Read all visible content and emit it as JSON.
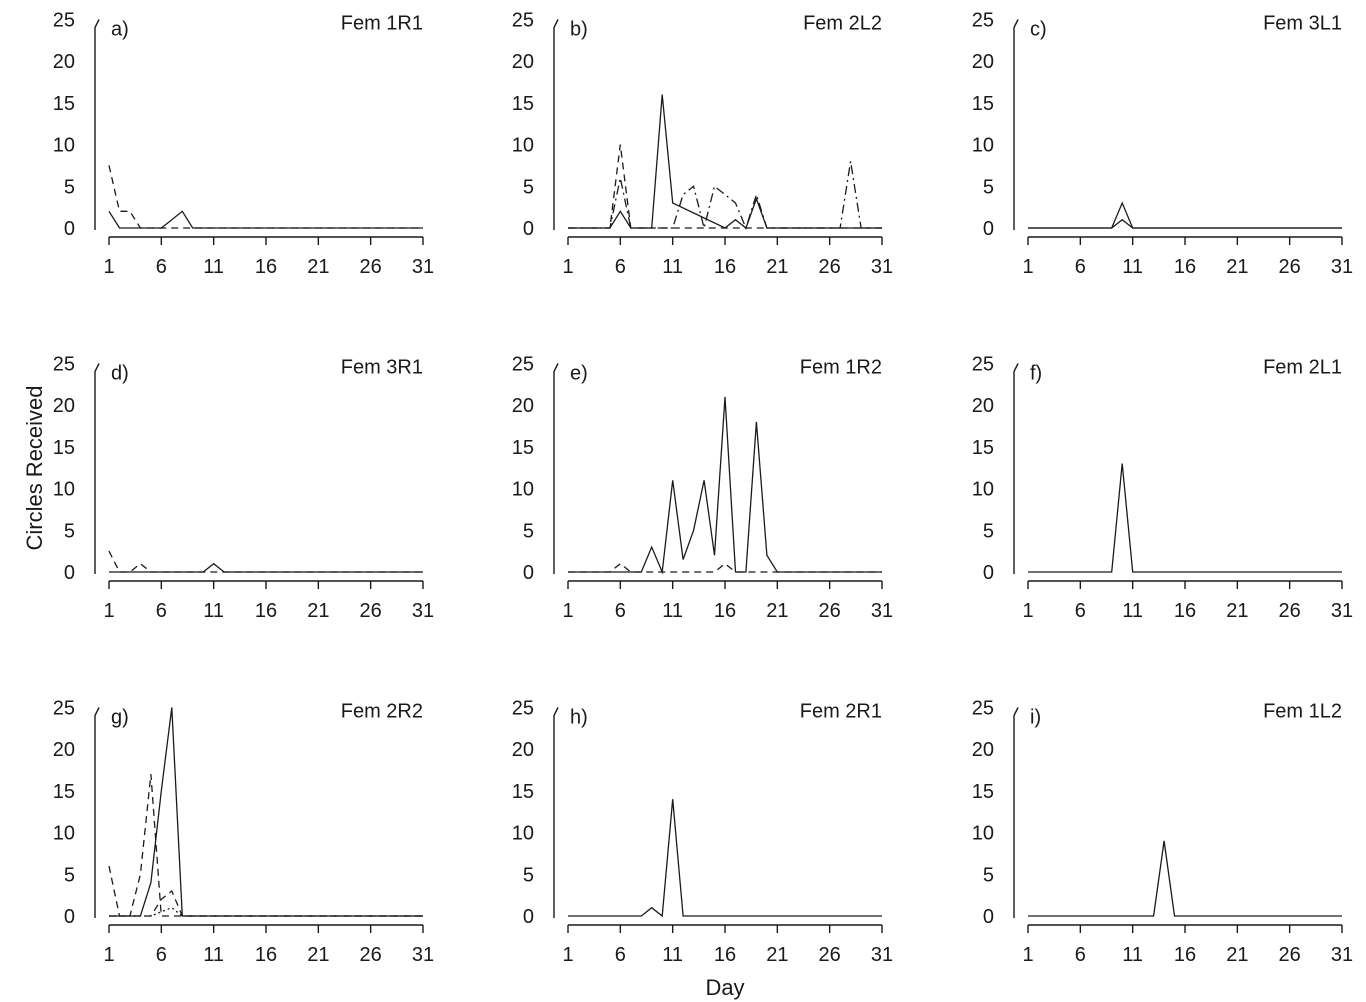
{
  "figure": {
    "ylabel": "Circles Received",
    "xlabel": "Day"
  },
  "chart_data": [
    {
      "type": "line",
      "letter": "a)",
      "title": "Fem 1R1",
      "xticks": [
        1,
        6,
        11,
        16,
        21,
        26,
        31
      ],
      "yticks": [
        0,
        5,
        10,
        15,
        20,
        25
      ],
      "xlim": [
        1,
        31
      ],
      "ylim": [
        0,
        25
      ],
      "series": [
        {
          "style": "solid",
          "x": [
            1,
            2,
            3,
            4,
            5,
            6,
            7,
            8,
            9,
            10,
            31
          ],
          "y": [
            2,
            0,
            0,
            0,
            0,
            0,
            1,
            2,
            0,
            0,
            0
          ]
        },
        {
          "style": "dashed",
          "x": [
            1,
            2,
            3,
            4,
            5,
            31
          ],
          "y": [
            7.5,
            2,
            2,
            0,
            0,
            0
          ]
        }
      ]
    },
    {
      "type": "line",
      "letter": "b)",
      "title": "Fem 2L2",
      "xticks": [
        1,
        6,
        11,
        16,
        21,
        26,
        31
      ],
      "yticks": [
        0,
        5,
        10,
        15,
        20,
        25
      ],
      "xlim": [
        1,
        31
      ],
      "ylim": [
        0,
        25
      ],
      "series": [
        {
          "style": "solid",
          "x": [
            1,
            5,
            6,
            7,
            9,
            10,
            11,
            16,
            17,
            18,
            19,
            20,
            31
          ],
          "y": [
            0,
            0,
            2,
            0,
            0,
            16,
            3,
            0,
            1,
            0,
            3.5,
            0,
            0
          ]
        },
        {
          "style": "dashed",
          "x": [
            1,
            5,
            6,
            7,
            31
          ],
          "y": [
            0,
            0,
            10,
            0,
            0
          ]
        },
        {
          "style": "dash-dot",
          "x": [
            1,
            5,
            6,
            7,
            11,
            12,
            13,
            14,
            15,
            16,
            17,
            18,
            19,
            20,
            27,
            28,
            29,
            31
          ],
          "y": [
            0,
            0,
            6,
            0,
            0,
            4,
            5,
            0,
            5,
            4,
            3,
            0,
            4,
            0,
            0,
            8,
            0,
            0
          ]
        }
      ]
    },
    {
      "type": "line",
      "letter": "c)",
      "title": "Fem 3L1",
      "xticks": [
        1,
        6,
        11,
        16,
        21,
        26,
        31
      ],
      "yticks": [
        0,
        5,
        10,
        15,
        20,
        25
      ],
      "xlim": [
        1,
        31
      ],
      "ylim": [
        0,
        25
      ],
      "series": [
        {
          "style": "solid",
          "x": [
            1,
            9,
            10,
            11,
            31
          ],
          "y": [
            0,
            0,
            3,
            0,
            0
          ]
        },
        {
          "style": "solid",
          "x": [
            1,
            9,
            10,
            11,
            31
          ],
          "y": [
            0,
            0,
            1,
            0,
            0
          ]
        }
      ]
    },
    {
      "type": "line",
      "letter": "d)",
      "title": "Fem 3R1",
      "xticks": [
        1,
        6,
        11,
        16,
        21,
        26,
        31
      ],
      "yticks": [
        0,
        5,
        10,
        15,
        20,
        25
      ],
      "xlim": [
        1,
        31
      ],
      "ylim": [
        0,
        25
      ],
      "series": [
        {
          "style": "solid",
          "x": [
            1,
            10,
            11,
            12,
            31
          ],
          "y": [
            0,
            0,
            1,
            0,
            0
          ]
        },
        {
          "style": "dashed",
          "x": [
            1,
            2,
            3,
            4,
            5,
            31
          ],
          "y": [
            2.5,
            0,
            0,
            1,
            0,
            0
          ]
        }
      ]
    },
    {
      "type": "line",
      "letter": "e)",
      "title": "Fem 1R2",
      "xticks": [
        1,
        6,
        11,
        16,
        21,
        26,
        31
      ],
      "yticks": [
        0,
        5,
        10,
        15,
        20,
        25
      ],
      "xlim": [
        1,
        31
      ],
      "ylim": [
        0,
        25
      ],
      "series": [
        {
          "style": "solid",
          "x": [
            1,
            8,
            9,
            10,
            11,
            12,
            13,
            14,
            15,
            16,
            17,
            18,
            19,
            20,
            21,
            31
          ],
          "y": [
            0,
            0,
            3,
            0,
            11,
            1.5,
            5,
            11,
            2,
            21,
            0,
            0,
            18,
            2,
            0,
            0
          ]
        },
        {
          "style": "dashed",
          "x": [
            1,
            5,
            6,
            7,
            15,
            16,
            17,
            31
          ],
          "y": [
            0,
            0,
            1,
            0,
            0,
            1,
            0,
            0
          ]
        }
      ]
    },
    {
      "type": "line",
      "letter": "f)",
      "title": "Fem 2L1",
      "xticks": [
        1,
        6,
        11,
        16,
        21,
        26,
        31
      ],
      "yticks": [
        0,
        5,
        10,
        15,
        20,
        25
      ],
      "xlim": [
        1,
        31
      ],
      "ylim": [
        0,
        25
      ],
      "series": [
        {
          "style": "solid",
          "x": [
            1,
            9,
            10,
            11,
            31
          ],
          "y": [
            0,
            0,
            13,
            0,
            0
          ]
        }
      ]
    },
    {
      "type": "line",
      "letter": "g)",
      "title": "Fem 2R2",
      "xticks": [
        1,
        6,
        11,
        16,
        21,
        26,
        31
      ],
      "yticks": [
        0,
        5,
        10,
        15,
        20,
        25
      ],
      "xlim": [
        1,
        31
      ],
      "ylim": [
        0,
        25
      ],
      "series": [
        {
          "style": "solid",
          "x": [
            1,
            4,
            5,
            6,
            7,
            8,
            31
          ],
          "y": [
            0,
            0,
            4,
            15,
            25,
            0,
            0
          ]
        },
        {
          "style": "dashed",
          "x": [
            1,
            2,
            3,
            4,
            5,
            6,
            7,
            31
          ],
          "y": [
            6,
            0,
            0,
            5,
            17,
            0,
            0,
            0
          ]
        },
        {
          "style": "dashed",
          "x": [
            1,
            5,
            6,
            7,
            8,
            31
          ],
          "y": [
            0,
            0,
            2,
            3,
            0,
            0
          ]
        },
        {
          "style": "dotted",
          "x": [
            1,
            5,
            6,
            7,
            8,
            31
          ],
          "y": [
            0,
            0,
            0.5,
            1,
            0,
            0
          ]
        }
      ]
    },
    {
      "type": "line",
      "letter": "h)",
      "title": "Fem 2R1",
      "xticks": [
        1,
        6,
        11,
        16,
        21,
        26,
        31
      ],
      "yticks": [
        0,
        5,
        10,
        15,
        20,
        25
      ],
      "xlim": [
        1,
        31
      ],
      "ylim": [
        0,
        25
      ],
      "series": [
        {
          "style": "solid",
          "x": [
            1,
            8,
            9,
            10,
            11,
            12,
            31
          ],
          "y": [
            0,
            0,
            1,
            0,
            14,
            0,
            0
          ]
        }
      ]
    },
    {
      "type": "line",
      "letter": "i)",
      "title": "Fem 1L2",
      "xticks": [
        1,
        6,
        11,
        16,
        21,
        26,
        31
      ],
      "yticks": [
        0,
        5,
        10,
        15,
        20,
        25
      ],
      "xlim": [
        1,
        31
      ],
      "ylim": [
        0,
        25
      ],
      "series": [
        {
          "style": "solid",
          "x": [
            1,
            13,
            14,
            15,
            31
          ],
          "y": [
            0,
            0,
            9,
            0,
            0
          ]
        }
      ]
    }
  ]
}
